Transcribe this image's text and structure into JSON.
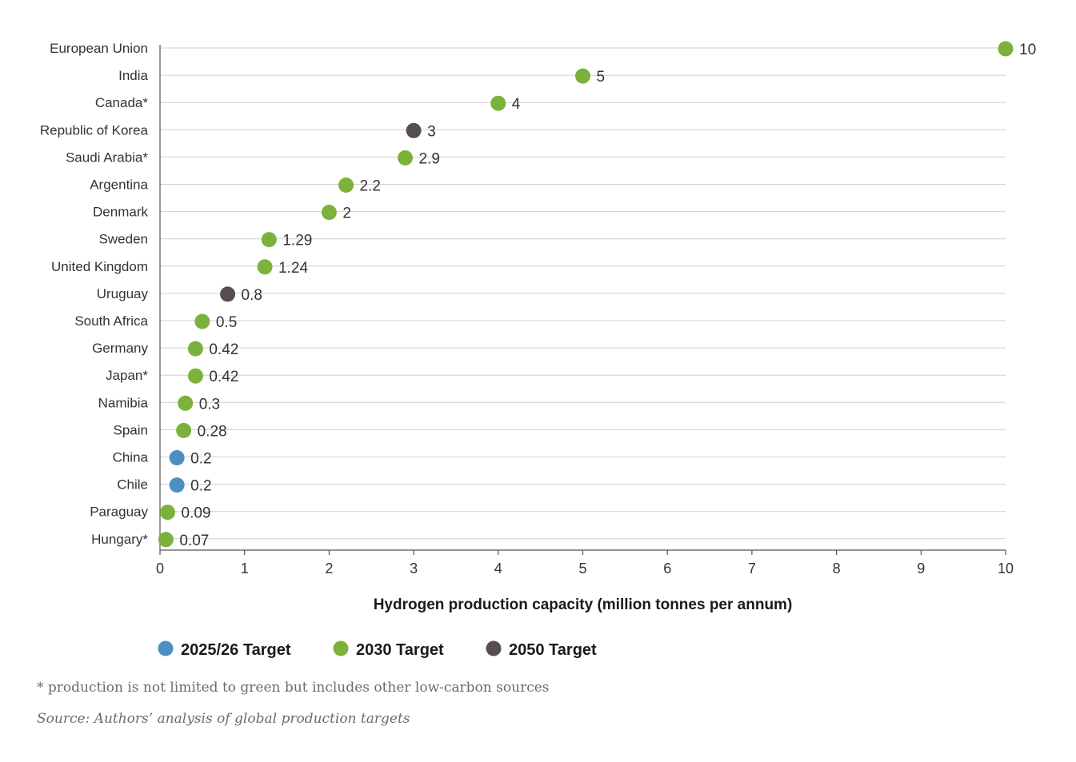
{
  "chart_data": {
    "type": "scatter",
    "orientation": "horizontal-dot-plot",
    "xlabel": "Hydrogen production capacity (million tonnes per annum)",
    "xlim": [
      0,
      10
    ],
    "xticks": [
      "0",
      "1",
      "2",
      "3",
      "4",
      "5",
      "6",
      "7",
      "8",
      "9",
      "10"
    ],
    "grid": true,
    "legend_position": "bottom-left",
    "series": [
      {
        "name": "2025/26 Target",
        "color": "#4a90c2"
      },
      {
        "name": "2030 Target",
        "color": "#7cb13b"
      },
      {
        "name": "2050 Target",
        "color": "#554e4c"
      }
    ],
    "points": [
      {
        "country": "European Union",
        "value": 10,
        "label": "10",
        "series": 1
      },
      {
        "country": "India",
        "value": 5,
        "label": "5",
        "series": 1
      },
      {
        "country": "Canada*",
        "value": 4,
        "label": "4",
        "series": 1
      },
      {
        "country": "Republic of Korea",
        "value": 3,
        "label": "3",
        "series": 2
      },
      {
        "country": "Saudi Arabia*",
        "value": 2.9,
        "label": "2.9",
        "series": 1
      },
      {
        "country": "Argentina",
        "value": 2.2,
        "label": "2.2",
        "series": 1
      },
      {
        "country": "Denmark",
        "value": 2,
        "label": "2",
        "series": 1
      },
      {
        "country": "Sweden",
        "value": 1.29,
        "label": "1.29",
        "series": 1
      },
      {
        "country": "United Kingdom",
        "value": 1.24,
        "label": "1.24",
        "series": 1
      },
      {
        "country": "Uruguay",
        "value": 0.8,
        "label": "0.8",
        "series": 2
      },
      {
        "country": "South Africa",
        "value": 0.5,
        "label": "0.5",
        "series": 1
      },
      {
        "country": "Germany",
        "value": 0.42,
        "label": "0.42",
        "series": 1
      },
      {
        "country": "Japan*",
        "value": 0.42,
        "label": "0.42",
        "series": 1
      },
      {
        "country": "Namibia",
        "value": 0.3,
        "label": "0.3",
        "series": 1
      },
      {
        "country": "Spain",
        "value": 0.28,
        "label": "0.28",
        "series": 1
      },
      {
        "country": "China",
        "value": 0.2,
        "label": "0.2",
        "series": 0
      },
      {
        "country": "Chile",
        "value": 0.2,
        "label": "0.2",
        "series": 0
      },
      {
        "country": "Paraguay",
        "value": 0.09,
        "label": "0.09",
        "series": 1
      },
      {
        "country": "Hungary*",
        "value": 0.07,
        "label": "0.07",
        "series": 1
      }
    ]
  },
  "notes": {
    "footnote": "* production is not limited to green but includes other low-carbon sources",
    "source": "Source: Authors’ analysis of global production targets"
  }
}
